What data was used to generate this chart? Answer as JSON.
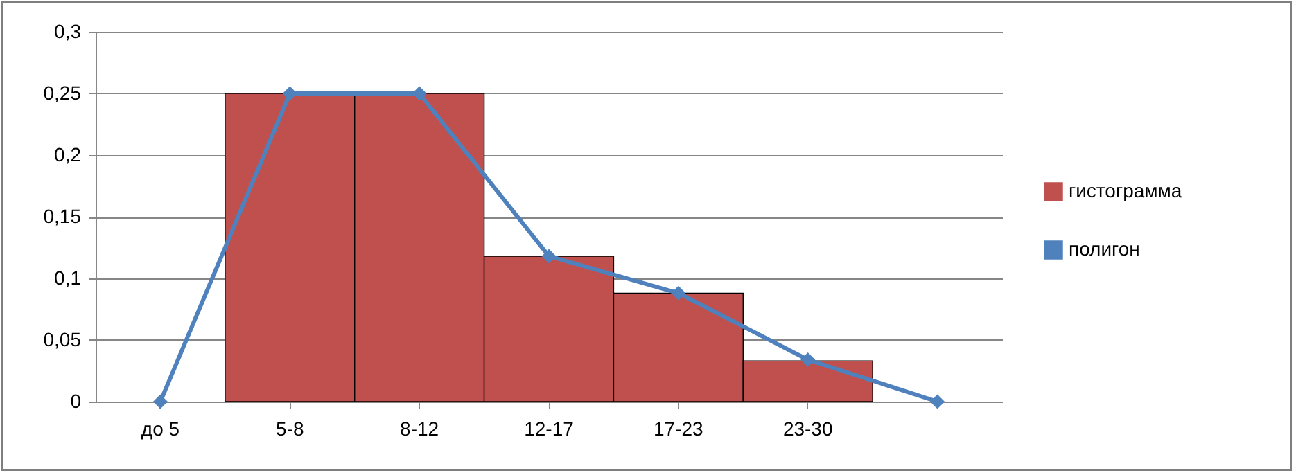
{
  "chart_data": {
    "type": "bar",
    "categories": [
      "до 5",
      "5-8",
      "8-12",
      "12-17",
      "17-23",
      "23-30",
      null
    ],
    "series": [
      {
        "name": "гистограмма",
        "color": "#c0504d",
        "values": [
          null,
          0.25,
          0.25,
          0.118,
          0.088,
          0.033,
          null
        ]
      },
      {
        "name": "полигон",
        "type": "line",
        "color": "#4f81bd",
        "values": [
          0,
          0.25,
          0.25,
          0.118,
          0.088,
          0.034,
          0
        ]
      }
    ],
    "ylim": [
      0,
      0.3
    ],
    "yticks": [
      0,
      {
        "value": 0.05,
        "label": "0,05"
      },
      {
        "value": 0.1,
        "label": "0,1"
      },
      {
        "value": 0.15,
        "label": "0,15"
      },
      {
        "value": 0.2,
        "label": "0,2"
      },
      {
        "value": 0.25,
        "label": "0,25"
      },
      {
        "value": 0.3,
        "label": "0,3"
      }
    ],
    "grid": "y",
    "legend": "right",
    "marker": "diamond",
    "line_style": "solid"
  }
}
